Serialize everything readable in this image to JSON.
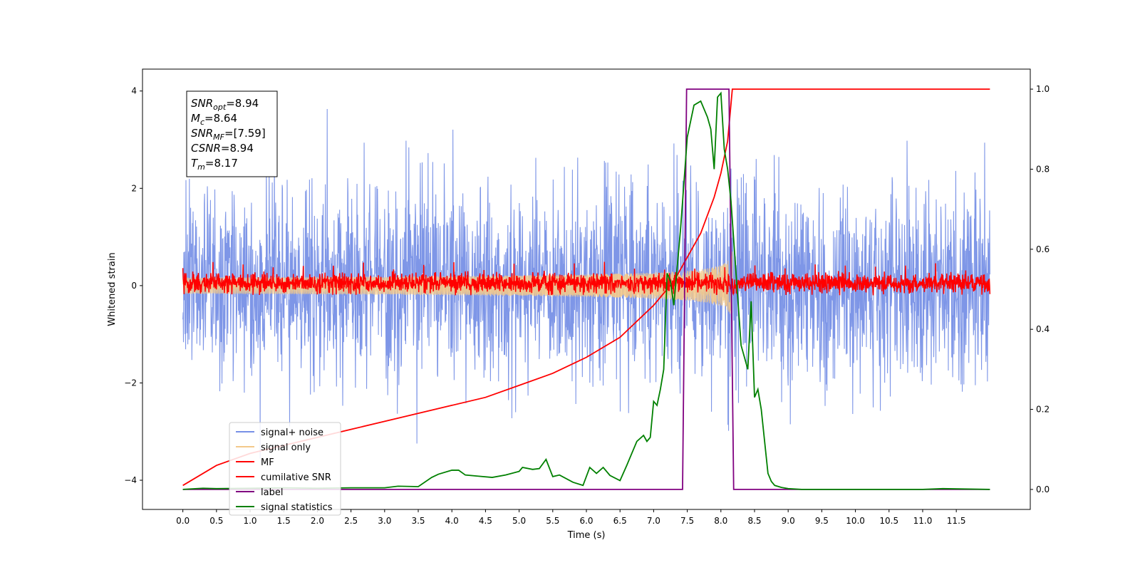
{
  "chart_data": {
    "type": "line",
    "title": "",
    "xlabel": "Time (s)",
    "ylabel": "Whitened strain",
    "ylabel_right": "",
    "xlim": [
      -0.6,
      12.6
    ],
    "ylim": [
      -4.6,
      4.45
    ],
    "ylim_right": [
      -0.05,
      1.05
    ],
    "xticks": [
      "0.0",
      "0.5",
      "1.0",
      "1.5",
      "2.0",
      "2.5",
      "3.0",
      "3.5",
      "4.0",
      "4.5",
      "5.0",
      "5.5",
      "6.0",
      "6.5",
      "7.0",
      "7.5",
      "8.0",
      "8.5",
      "9.0",
      "9.5",
      "10.0",
      "10.5",
      "11.0",
      "11.5"
    ],
    "yticks_left": [
      "4",
      "2",
      "0",
      "−2",
      "−4"
    ],
    "yticks_right": [
      "1.0",
      "0.8",
      "0.6",
      "0.4",
      "0.2",
      "0.0"
    ],
    "annotation": {
      "lines": [
        {
          "sym": "SNR",
          "sub": "opt",
          "value": "=8.94"
        },
        {
          "sym": "M",
          "sub": "c",
          "value": "=8.64"
        },
        {
          "sym": "SNR",
          "sub": "MF",
          "value": "=[7.59]"
        },
        {
          "sym": "CSNR",
          "sub": "",
          "value": "=8.94"
        },
        {
          "sym": "T",
          "sub": "m",
          "value": "=8.17"
        }
      ]
    },
    "legend_position": "lower-left",
    "series": [
      {
        "name": "signal+ noise",
        "color": "#7790e6",
        "axis": "left",
        "envelope": {
          "x": [
            0.0,
            12.0
          ],
          "mean": 0.0,
          "std": 1.0,
          "max_abs": 4.0
        }
      },
      {
        "name": "signal only",
        "color": "#f3c98b",
        "axis": "left",
        "chirp": {
          "t_start": 0.0,
          "t_merger": 8.17,
          "amplitude_at_merger": 0.75
        }
      },
      {
        "name": "MF",
        "color": "#ff0000",
        "axis": "left",
        "envelope": {
          "x": [
            0.0,
            12.0
          ],
          "mean": 0.05,
          "band": [
            -0.2,
            0.3
          ],
          "peaks": [
            0.5,
            -0.2
          ]
        }
      },
      {
        "name": "cumilative SNR",
        "color": "#ff0000",
        "axis": "right",
        "x": [
          0.0,
          0.5,
          1.0,
          1.5,
          2.0,
          2.5,
          3.0,
          3.5,
          4.0,
          4.5,
          5.0,
          5.5,
          6.0,
          6.5,
          7.0,
          7.3,
          7.5,
          7.7,
          7.9,
          8.0,
          8.1,
          8.17,
          12.0
        ],
        "y": [
          0.01,
          0.06,
          0.09,
          0.11,
          0.13,
          0.15,
          0.17,
          0.19,
          0.21,
          0.23,
          0.26,
          0.29,
          0.33,
          0.38,
          0.46,
          0.52,
          0.58,
          0.64,
          0.73,
          0.79,
          0.87,
          1.0,
          1.0
        ]
      },
      {
        "name": "label",
        "color": "#800080",
        "axis": "right",
        "x": [
          0.0,
          7.43,
          7.49,
          8.12,
          8.19,
          12.0
        ],
        "y": [
          0.0,
          0.0,
          1.0,
          1.0,
          0.0,
          0.0
        ]
      },
      {
        "name": "signal statistics",
        "color": "#008000",
        "axis": "right",
        "x": [
          0.0,
          0.3,
          0.5,
          1.0,
          1.5,
          2.0,
          2.5,
          3.0,
          3.2,
          3.5,
          3.7,
          3.8,
          4.0,
          4.1,
          4.2,
          4.4,
          4.6,
          4.8,
          5.0,
          5.05,
          5.2,
          5.3,
          5.4,
          5.5,
          5.6,
          5.8,
          5.95,
          6.05,
          6.15,
          6.25,
          6.35,
          6.5,
          6.6,
          6.75,
          6.85,
          6.9,
          6.95,
          7.0,
          7.05,
          7.1,
          7.15,
          7.2,
          7.25,
          7.3,
          7.4,
          7.5,
          7.6,
          7.7,
          7.8,
          7.85,
          7.9,
          7.95,
          8.0,
          8.05,
          8.1,
          8.15,
          8.2,
          8.3,
          8.4,
          8.45,
          8.5,
          8.55,
          8.6,
          8.65,
          8.7,
          8.75,
          8.8,
          8.9,
          9.0,
          9.2,
          9.5,
          10.0,
          11.0,
          11.3,
          12.0
        ],
        "y": [
          0.0,
          0.003,
          0.002,
          0.003,
          0.004,
          0.003,
          0.004,
          0.004,
          0.008,
          0.007,
          0.03,
          0.038,
          0.048,
          0.048,
          0.036,
          0.033,
          0.03,
          0.036,
          0.045,
          0.055,
          0.05,
          0.052,
          0.075,
          0.032,
          0.036,
          0.018,
          0.01,
          0.055,
          0.04,
          0.055,
          0.035,
          0.022,
          0.06,
          0.12,
          0.135,
          0.12,
          0.13,
          0.22,
          0.21,
          0.25,
          0.3,
          0.54,
          0.52,
          0.46,
          0.65,
          0.88,
          0.96,
          0.97,
          0.93,
          0.9,
          0.8,
          0.98,
          0.99,
          0.85,
          0.8,
          0.72,
          0.6,
          0.36,
          0.3,
          0.47,
          0.23,
          0.25,
          0.2,
          0.12,
          0.04,
          0.02,
          0.01,
          0.005,
          0.002,
          0.0,
          0.0,
          0.0,
          0.0,
          0.002,
          0.0
        ]
      }
    ]
  }
}
